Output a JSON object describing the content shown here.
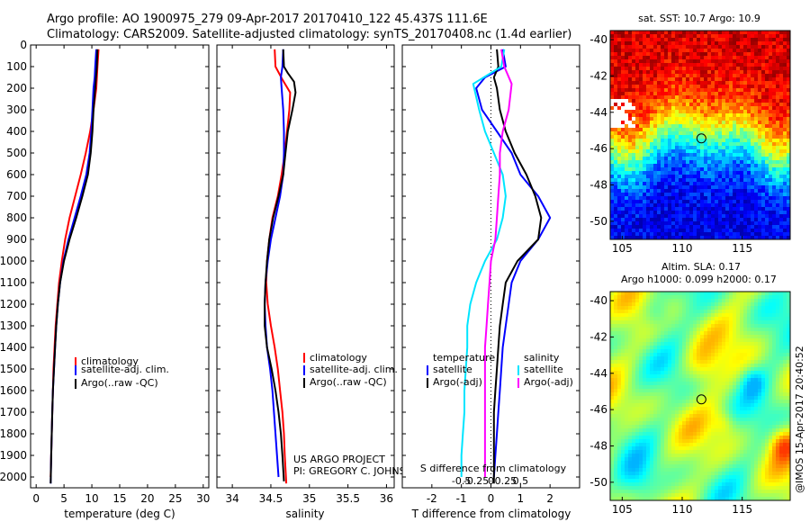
{
  "header": {
    "line1": "Argo profile: AO 1900975_279 09-Apr-2017 20170410_122 45.437S 111.6E",
    "line2": "Climatology: CARS2009. Satellite-adjusted climatology: synTS_20170408.nc (1.4d earlier)"
  },
  "colors": {
    "climatology": "#ff0000",
    "satellite": "#0000ff",
    "argo": "#000000",
    "t_diff_argo": "#000000",
    "t_diff_satellite": "#0000ff",
    "s_diff_argo": "#ff00ff",
    "s_diff_satellite": "#00e5ff"
  },
  "credit": {
    "line1": "US ARGO PROJECT",
    "line2": "PI: GREGORY C. JOHNSON"
  },
  "imos_stamp": "@IMOS 15-Apr-2017 20:40:52",
  "chart_data": [
    {
      "id": "temperature",
      "type": "line",
      "xlabel": "temperature (deg C)",
      "xlim": [
        -1,
        31
      ],
      "ylim": [
        0,
        2050
      ],
      "y_inverted": true,
      "xticks": [
        0,
        5,
        10,
        15,
        20,
        25,
        30
      ],
      "yticks": [
        0,
        100,
        200,
        300,
        400,
        500,
        600,
        700,
        800,
        900,
        1000,
        1100,
        1200,
        1300,
        1400,
        1500,
        1600,
        1700,
        1800,
        1900,
        2000
      ],
      "legend": {
        "location": "mid-right",
        "entries": [
          "climatology",
          "satellite-adj. clim.",
          "Argo(..raw -QC)"
        ]
      },
      "series": [
        {
          "name": "climatology",
          "color": "#ff0000",
          "points": [
            [
              11.2,
              20
            ],
            [
              11.0,
              100
            ],
            [
              10.8,
              200
            ],
            [
              10.3,
              300
            ],
            [
              9.7,
              400
            ],
            [
              8.9,
              500
            ],
            [
              8.0,
              600
            ],
            [
              7.0,
              700
            ],
            [
              6.0,
              800
            ],
            [
              5.2,
              900
            ],
            [
              4.6,
              1000
            ],
            [
              4.1,
              1100
            ],
            [
              3.8,
              1200
            ],
            [
              3.5,
              1300
            ],
            [
              3.3,
              1400
            ],
            [
              3.1,
              1500
            ],
            [
              3.0,
              1600
            ],
            [
              2.9,
              1700
            ],
            [
              2.8,
              1800
            ],
            [
              2.7,
              1900
            ],
            [
              2.6,
              2000
            ]
          ]
        },
        {
          "name": "satellite-adj. clim.",
          "color": "#0000ff",
          "points": [
            [
              10.8,
              20
            ],
            [
              10.6,
              100
            ],
            [
              10.5,
              150
            ],
            [
              10.3,
              200
            ],
            [
              10.1,
              300
            ],
            [
              9.9,
              400
            ],
            [
              9.6,
              500
            ],
            [
              9.0,
              600
            ],
            [
              8.0,
              700
            ],
            [
              6.9,
              800
            ],
            [
              5.8,
              900
            ],
            [
              4.9,
              1000
            ],
            [
              4.3,
              1100
            ],
            [
              3.9,
              1200
            ],
            [
              3.6,
              1300
            ],
            [
              3.4,
              1400
            ],
            [
              3.2,
              1500
            ],
            [
              3.0,
              1600
            ],
            [
              2.9,
              1700
            ],
            [
              2.8,
              1800
            ],
            [
              2.7,
              1900
            ],
            [
              2.6,
              2030
            ]
          ]
        },
        {
          "name": "Argo(..raw -QC)",
          "color": "#000000",
          "points": [
            [
              11.0,
              20
            ],
            [
              10.9,
              100
            ],
            [
              10.6,
              200
            ],
            [
              10.3,
              300
            ],
            [
              10.1,
              400
            ],
            [
              9.8,
              500
            ],
            [
              9.3,
              600
            ],
            [
              8.3,
              700
            ],
            [
              7.2,
              800
            ],
            [
              6.0,
              900
            ],
            [
              5.0,
              1000
            ],
            [
              4.3,
              1100
            ],
            [
              3.9,
              1200
            ],
            [
              3.6,
              1300
            ],
            [
              3.4,
              1400
            ],
            [
              3.2,
              1500
            ],
            [
              3.0,
              1600
            ],
            [
              2.9,
              1700
            ],
            [
              2.8,
              1800
            ],
            [
              2.7,
              1900
            ],
            [
              2.6,
              2030
            ]
          ]
        }
      ]
    },
    {
      "id": "salinity",
      "type": "line",
      "xlabel": "salinity",
      "xlim": [
        33.8,
        36.1
      ],
      "ylim": [
        0,
        2050
      ],
      "y_inverted": true,
      "xticks": [
        34,
        34.5,
        35,
        35.5,
        36
      ],
      "legend": {
        "location": "bottom-right",
        "entries": [
          "climatology",
          "satellite-adj. clim.",
          "Argo(..raw -QC)"
        ]
      },
      "series": [
        {
          "name": "climatology",
          "color": "#ff0000",
          "points": [
            [
              34.55,
              20
            ],
            [
              34.56,
              100
            ],
            [
              34.65,
              160
            ],
            [
              34.75,
              220
            ],
            [
              34.74,
              300
            ],
            [
              34.71,
              400
            ],
            [
              34.68,
              500
            ],
            [
              34.64,
              600
            ],
            [
              34.59,
              700
            ],
            [
              34.52,
              800
            ],
            [
              34.48,
              900
            ],
            [
              34.45,
              1000
            ],
            [
              34.44,
              1100
            ],
            [
              34.46,
              1200
            ],
            [
              34.5,
              1300
            ],
            [
              34.55,
              1400
            ],
            [
              34.59,
              1500
            ],
            [
              34.62,
              1600
            ],
            [
              34.65,
              1700
            ],
            [
              34.67,
              1800
            ],
            [
              34.68,
              1900
            ],
            [
              34.7,
              2030
            ]
          ]
        },
        {
          "name": "satellite-adj. clim.",
          "color": "#0000ff",
          "points": [
            [
              34.66,
              20
            ],
            [
              34.65,
              100
            ],
            [
              34.63,
              150
            ],
            [
              34.64,
              200
            ],
            [
              34.66,
              300
            ],
            [
              34.67,
              400
            ],
            [
              34.67,
              500
            ],
            [
              34.66,
              600
            ],
            [
              34.62,
              700
            ],
            [
              34.56,
              800
            ],
            [
              34.5,
              900
            ],
            [
              34.46,
              1000
            ],
            [
              34.43,
              1100
            ],
            [
              34.42,
              1200
            ],
            [
              34.43,
              1300
            ],
            [
              34.45,
              1400
            ],
            [
              34.49,
              1500
            ],
            [
              34.52,
              1600
            ],
            [
              34.54,
              1700
            ],
            [
              34.56,
              1800
            ],
            [
              34.58,
              1900
            ],
            [
              34.6,
              2000
            ]
          ]
        },
        {
          "name": "Argo(..raw -QC)",
          "color": "#000000",
          "points": [
            [
              34.66,
              20
            ],
            [
              34.67,
              100
            ],
            [
              34.72,
              130
            ],
            [
              34.8,
              170
            ],
            [
              34.82,
              220
            ],
            [
              34.78,
              300
            ],
            [
              34.72,
              400
            ],
            [
              34.69,
              500
            ],
            [
              34.66,
              600
            ],
            [
              34.6,
              700
            ],
            [
              34.53,
              800
            ],
            [
              34.48,
              900
            ],
            [
              34.45,
              1000
            ],
            [
              34.43,
              1100
            ],
            [
              34.42,
              1200
            ],
            [
              34.42,
              1300
            ],
            [
              34.45,
              1400
            ],
            [
              34.51,
              1500
            ],
            [
              34.56,
              1600
            ],
            [
              34.6,
              1700
            ],
            [
              34.63,
              1800
            ],
            [
              34.65,
              1900
            ],
            [
              34.67,
              2020
            ]
          ]
        }
      ]
    },
    {
      "id": "differences",
      "type": "line",
      "xlabel": "T difference from climatology",
      "xlabel_top": "S difference from climatology",
      "xlim": [
        -3,
        3
      ],
      "ylim": [
        0,
        2050
      ],
      "y_inverted": true,
      "xticks": [
        -2,
        -1,
        0,
        1,
        2
      ],
      "xticks_salinity": [
        "-0.5",
        "-0.25",
        "0",
        "0.25",
        "0.5"
      ],
      "legend": {
        "location": "bottom",
        "temperature_title": "temperature",
        "salinity_title": "salinity",
        "entries": [
          "satellite",
          "Argo(-adj)",
          "satellite",
          "Argo(-adj)"
        ]
      },
      "series": [
        {
          "name": "temperature satellite",
          "color": "#0000ff",
          "points": [
            [
              0.4,
              20
            ],
            [
              0.5,
              100
            ],
            [
              -0.2,
              150
            ],
            [
              -0.5,
              200
            ],
            [
              -0.3,
              300
            ],
            [
              0.2,
              400
            ],
            [
              0.7,
              500
            ],
            [
              1.0,
              600
            ],
            [
              1.6,
              700
            ],
            [
              2.0,
              800
            ],
            [
              1.6,
              900
            ],
            [
              1.0,
              1000
            ],
            [
              0.7,
              1100
            ],
            [
              0.6,
              1200
            ],
            [
              0.5,
              1300
            ],
            [
              0.4,
              1400
            ],
            [
              0.35,
              1500
            ],
            [
              0.3,
              1600
            ],
            [
              0.25,
              1700
            ],
            [
              0.2,
              1800
            ],
            [
              0.15,
              1900
            ],
            [
              0.1,
              2000
            ]
          ]
        },
        {
          "name": "temperature Argo(-adj)",
          "color": "#000000",
          "points": [
            [
              0.2,
              20
            ],
            [
              0.25,
              100
            ],
            [
              0.1,
              150
            ],
            [
              0.2,
              200
            ],
            [
              0.3,
              300
            ],
            [
              0.5,
              400
            ],
            [
              0.8,
              500
            ],
            [
              1.2,
              600
            ],
            [
              1.5,
              700
            ],
            [
              1.7,
              800
            ],
            [
              1.6,
              900
            ],
            [
              0.9,
              1000
            ],
            [
              0.5,
              1100
            ],
            [
              0.4,
              1200
            ],
            [
              0.3,
              1300
            ],
            [
              0.25,
              1400
            ],
            [
              0.2,
              1500
            ],
            [
              0.15,
              1600
            ],
            [
              0.1,
              1700
            ],
            [
              0.1,
              1800
            ],
            [
              0.1,
              1900
            ],
            [
              0.1,
              2030
            ]
          ]
        },
        {
          "name": "salinity satellite",
          "color": "#00e5ff",
          "points": [
            [
              0.45,
              20
            ],
            [
              0.35,
              100
            ],
            [
              -0.6,
              180
            ],
            [
              -0.4,
              300
            ],
            [
              -0.2,
              400
            ],
            [
              0.1,
              500
            ],
            [
              0.4,
              600
            ],
            [
              0.5,
              700
            ],
            [
              0.4,
              800
            ],
            [
              0.2,
              900
            ],
            [
              -0.2,
              1000
            ],
            [
              -0.5,
              1100
            ],
            [
              -0.7,
              1200
            ],
            [
              -0.8,
              1300
            ],
            [
              -0.8,
              1400
            ],
            [
              -0.85,
              1500
            ],
            [
              -0.9,
              1600
            ],
            [
              -0.9,
              1700
            ],
            [
              -0.95,
              1800
            ],
            [
              -1.0,
              1900
            ],
            [
              -1.0,
              2000
            ]
          ]
        },
        {
          "name": "salinity Argo(-adj)",
          "color": "#ff00ff",
          "points": [
            [
              0.35,
              20
            ],
            [
              0.45,
              100
            ],
            [
              0.7,
              180
            ],
            [
              0.6,
              300
            ],
            [
              0.4,
              400
            ],
            [
              0.3,
              500
            ],
            [
              0.3,
              600
            ],
            [
              0.25,
              700
            ],
            [
              0.2,
              800
            ],
            [
              0.15,
              900
            ],
            [
              0.0,
              1000
            ],
            [
              -0.05,
              1100
            ],
            [
              -0.1,
              1200
            ],
            [
              -0.15,
              1300
            ],
            [
              -0.2,
              1400
            ],
            [
              -0.2,
              1500
            ],
            [
              -0.2,
              1600
            ],
            [
              -0.2,
              1700
            ],
            [
              -0.2,
              1800
            ],
            [
              -0.2,
              1900
            ],
            [
              -0.2,
              2000
            ]
          ]
        }
      ]
    },
    {
      "id": "sst_map",
      "type": "heatmap",
      "title": "sat. SST: 10.7  Argo: 10.9",
      "xlim": [
        104,
        119
      ],
      "ylim": [
        -51,
        -39.5
      ],
      "xticks": [
        105,
        110,
        115
      ],
      "yticks": [
        -40,
        -42,
        -44,
        -46,
        -48,
        -50
      ],
      "marker": {
        "lon": 111.6,
        "lat": -45.437
      },
      "colormap": "jet"
    },
    {
      "id": "sla_map",
      "type": "heatmap",
      "title_line1": "Altim. SLA: 0.17",
      "title_line2": "Argo h1000: 0.099  h2000: 0.17",
      "xlim": [
        104,
        119
      ],
      "ylim": [
        -51,
        -39.5
      ],
      "xticks": [
        105,
        110,
        115
      ],
      "yticks": [
        -40,
        -42,
        -44,
        -46,
        -48,
        -50
      ],
      "marker": {
        "lon": 111.6,
        "lat": -45.437
      },
      "colormap": "jet"
    }
  ]
}
